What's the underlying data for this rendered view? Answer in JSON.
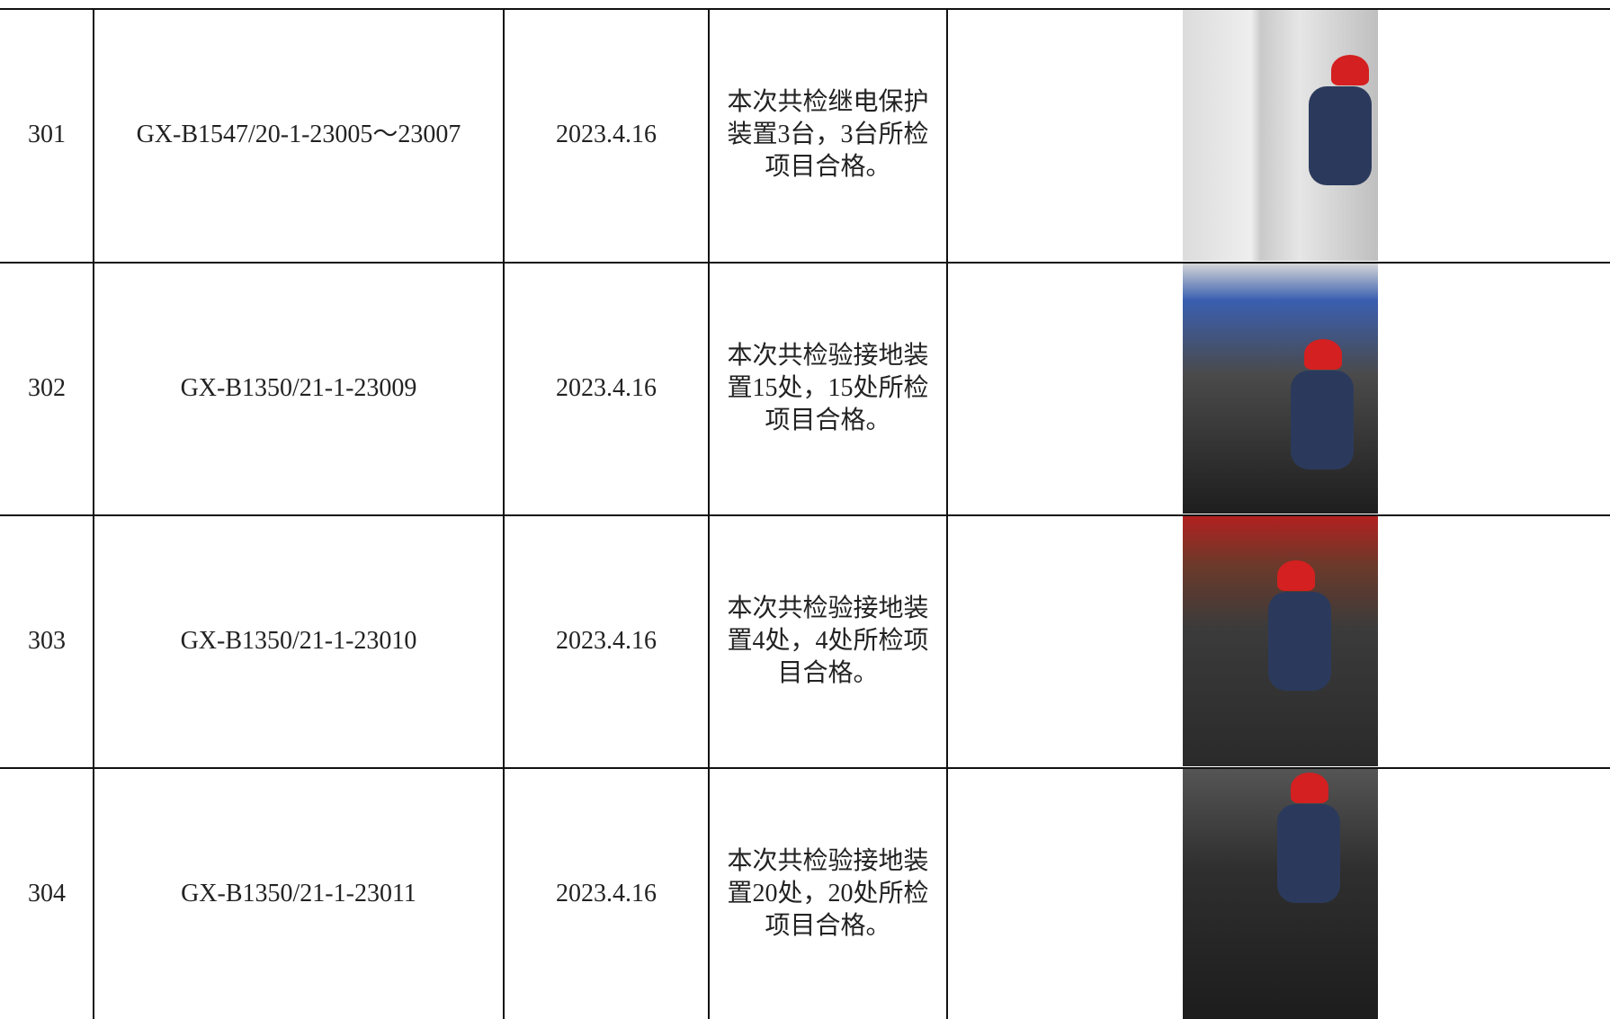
{
  "table": {
    "rows": [
      [
        "301",
        "GX-B1547/20-1-23005～23007",
        "2023.4.16",
        "本次共检继电保护装置3台，3台所检项目合格。"
      ],
      [
        "302",
        "GX-B1350/21-1-23009",
        "2023.4.16",
        "本次共检验接地装置15处，15处所检项目合格。"
      ],
      [
        "303",
        "GX-B1350/21-1-23010",
        "2023.4.16",
        "本次共检验接地装置4处，4处所检项目合格。"
      ],
      [
        "304",
        "GX-B1350/21-1-23011",
        "2023.4.16",
        "本次共检验接地装置20处，20处所检项目合格。"
      ]
    ]
  }
}
